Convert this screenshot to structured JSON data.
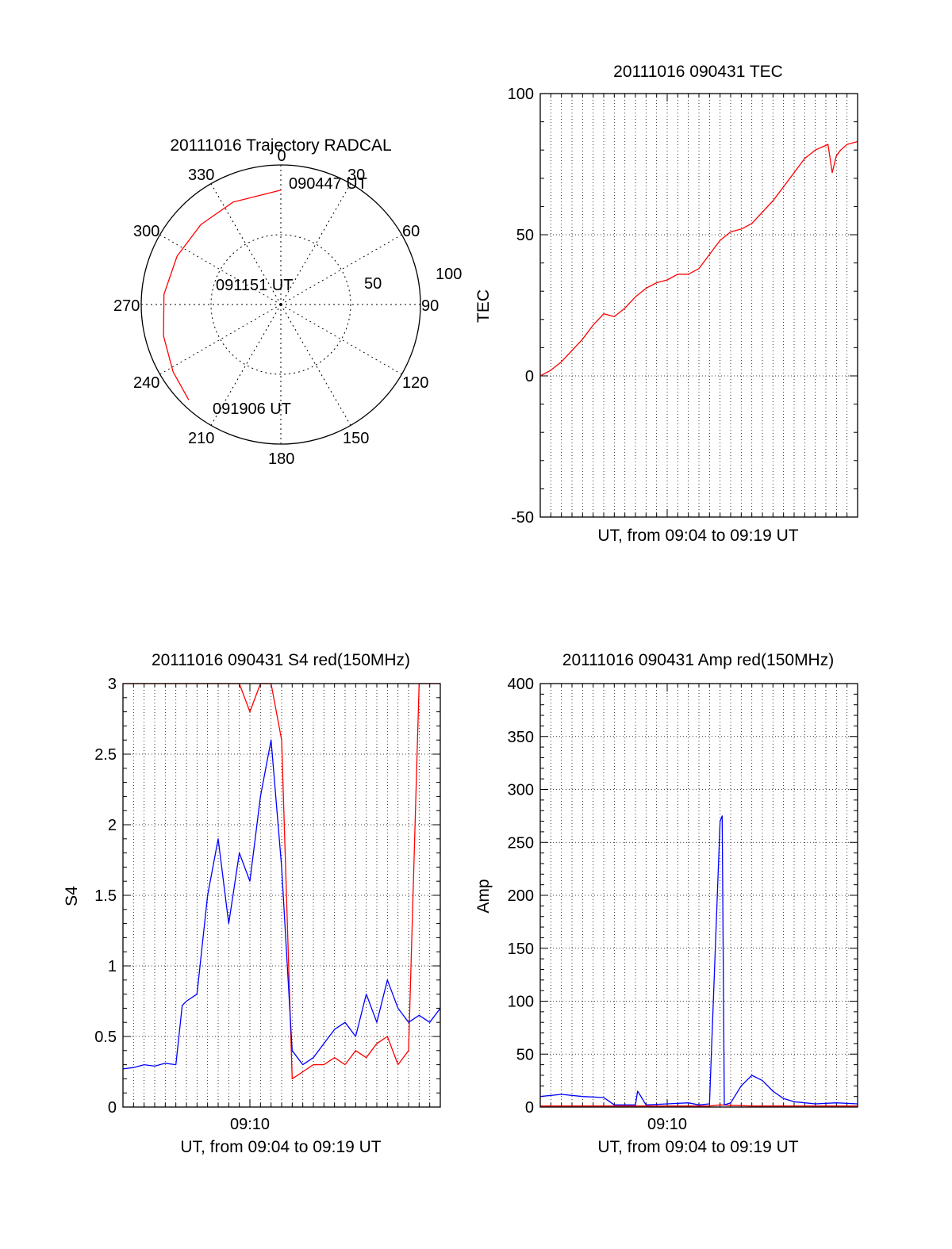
{
  "chart_data": [
    {
      "type": "polar",
      "title": "20111016 Trajectory RADCAL",
      "azimuth_labels": [
        "0",
        "30",
        "60",
        "90",
        "120",
        "150",
        "180",
        "210",
        "240",
        "270",
        "300",
        "330"
      ],
      "radius_labels": [
        "50",
        "100"
      ],
      "rlim": [
        0,
        100
      ],
      "trajectory": {
        "color": "#ff0000",
        "points": [
          {
            "az": 0,
            "r": 82
          },
          {
            "az": 335,
            "r": 81
          },
          {
            "az": 315,
            "r": 81
          },
          {
            "az": 295,
            "r": 82
          },
          {
            "az": 275,
            "r": 84
          },
          {
            "az": 255,
            "r": 87
          },
          {
            "az": 238,
            "r": 91
          },
          {
            "az": 224,
            "r": 95
          }
        ]
      },
      "annotations": [
        "090447 UT",
        "091151 UT",
        "091906 UT"
      ]
    },
    {
      "type": "line",
      "title": "20111016 090431 TEC",
      "xlabel": "UT, from 09:04 to 09:19 UT",
      "ylabel": "TEC",
      "xlim": [
        0,
        15
      ],
      "ylim": [
        -50,
        100
      ],
      "yticks": [
        "100",
        "50",
        "0",
        "-50"
      ],
      "grid": true,
      "series": [
        {
          "color": "#ff0000",
          "x": [
            0,
            0.5,
            1.0,
            1.5,
            2.0,
            2.5,
            3.0,
            3.5,
            4.0,
            4.5,
            5.0,
            5.5,
            6.0,
            6.5,
            7.0,
            7.5,
            8.0,
            8.5,
            9.0,
            9.5,
            10.0,
            10.5,
            11.0,
            11.5,
            12.0,
            12.5,
            13.0,
            13.3,
            13.6,
            13.8,
            14.0,
            14.2,
            14.5,
            15.0
          ],
          "y": [
            0,
            2,
            5,
            9,
            13,
            18,
            22,
            21,
            24,
            28,
            31,
            33,
            34,
            36,
            36,
            38,
            43,
            48,
            51,
            52,
            54,
            58,
            62,
            67,
            72,
            77,
            80,
            81,
            82,
            72,
            78,
            80,
            82,
            83
          ]
        }
      ]
    },
    {
      "type": "line",
      "title": "20111016 090431 S4 red(150MHz)",
      "xlabel": "UT, from 09:04 to 09:19 UT",
      "ylabel": "S4",
      "xlim": [
        0,
        15
      ],
      "ylim": [
        0,
        3
      ],
      "yticks": [
        "3",
        "2.5",
        "2",
        "1.5",
        "1",
        "0.5",
        "0"
      ],
      "xtick_labels": [
        "09:10"
      ],
      "grid": true,
      "series": [
        {
          "color": "#ff0000",
          "x": [
            0,
            0.5,
            1.0,
            1.5,
            2.0,
            2.5,
            3.0,
            3.5,
            4.0,
            4.5,
            5.0,
            5.5,
            6.0,
            6.5,
            7.0,
            7.5,
            8.0,
            8.5,
            9.0,
            9.5,
            10.0,
            10.5,
            11.0,
            11.5,
            12.0,
            12.5,
            13.0,
            13.5,
            14.0,
            14.5,
            15.0
          ],
          "y": [
            3,
            3,
            3,
            3,
            3,
            3,
            3,
            3,
            3,
            3,
            3,
            3,
            2.8,
            3,
            3,
            2.6,
            0.2,
            0.25,
            0.3,
            0.3,
            0.35,
            0.3,
            0.4,
            0.35,
            0.45,
            0.5,
            0.3,
            0.4,
            3,
            3,
            3
          ]
        },
        {
          "color": "#0000ff",
          "x": [
            0,
            0.5,
            1.0,
            1.5,
            2.0,
            2.5,
            2.8,
            3.0,
            3.5,
            4.0,
            4.5,
            5.0,
            5.5,
            6.0,
            6.5,
            7.0,
            7.5,
            8.0,
            8.5,
            9.0,
            9.5,
            10.0,
            10.5,
            11.0,
            11.5,
            12.0,
            12.5,
            13.0,
            13.5,
            14.0,
            14.5,
            15.0
          ],
          "y": [
            0.27,
            0.28,
            0.3,
            0.29,
            0.31,
            0.3,
            0.72,
            0.75,
            0.8,
            1.5,
            1.9,
            1.3,
            1.8,
            1.6,
            2.2,
            2.6,
            1.7,
            0.4,
            0.3,
            0.35,
            0.45,
            0.55,
            0.6,
            0.5,
            0.8,
            0.6,
            0.9,
            0.7,
            0.6,
            0.65,
            0.6,
            0.7
          ]
        }
      ]
    },
    {
      "type": "line",
      "title": "20111016 090431 Amp red(150MHz)",
      "xlabel": "UT, from 09:04 to 09:19 UT",
      "ylabel": "Amp",
      "xlim": [
        0,
        15
      ],
      "ylim": [
        0,
        400
      ],
      "yticks": [
        "400",
        "350",
        "300",
        "250",
        "200",
        "150",
        "100",
        "50",
        "0"
      ],
      "xtick_labels": [
        "09:10"
      ],
      "grid": true,
      "series": [
        {
          "color": "#ff0000",
          "x": [
            0,
            3,
            6,
            8,
            8.5,
            10,
            12,
            15
          ],
          "y": [
            1,
            1,
            1,
            1,
            2,
            1,
            1,
            1
          ]
        },
        {
          "color": "#0000ff",
          "x": [
            0,
            1.0,
            2.0,
            3.0,
            3.5,
            4.0,
            4.5,
            4.6,
            4.7,
            5.0,
            6.0,
            7.0,
            7.5,
            8.0,
            8.5,
            8.6,
            8.7,
            9.0,
            9.5,
            10.0,
            10.5,
            11.0,
            11.5,
            12.0,
            13.0,
            14.0,
            15.0
          ],
          "y": [
            10,
            12,
            10,
            9,
            2,
            2,
            2,
            15,
            12,
            2,
            3,
            4,
            2,
            3,
            270,
            275,
            2,
            4,
            20,
            30,
            25,
            15,
            8,
            5,
            3,
            4,
            3
          ]
        }
      ]
    }
  ]
}
